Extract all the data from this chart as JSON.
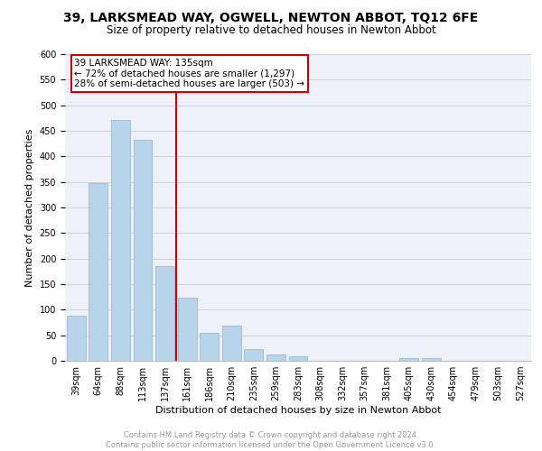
{
  "title": "39, LARKSMEAD WAY, OGWELL, NEWTON ABBOT, TQ12 6FE",
  "subtitle": "Size of property relative to detached houses in Newton Abbot",
  "xlabel": "Distribution of detached houses by size in Newton Abbot",
  "ylabel": "Number of detached properties",
  "categories": [
    "39sqm",
    "64sqm",
    "88sqm",
    "113sqm",
    "137sqm",
    "161sqm",
    "186sqm",
    "210sqm",
    "235sqm",
    "259sqm",
    "283sqm",
    "308sqm",
    "332sqm",
    "357sqm",
    "381sqm",
    "405sqm",
    "430sqm",
    "454sqm",
    "479sqm",
    "503sqm",
    "527sqm"
  ],
  "values": [
    88,
    348,
    472,
    432,
    185,
    123,
    55,
    68,
    23,
    13,
    8,
    0,
    0,
    0,
    0,
    5,
    5,
    0,
    0,
    0,
    0
  ],
  "bar_color": "#b8d4ea",
  "bar_edge_color": "#8ab4d4",
  "vline_color": "#cc0000",
  "annotation_line1": "39 LARKSMEAD WAY: 135sqm",
  "annotation_line2": "← 72% of detached houses are smaller (1,297)",
  "annotation_line3": "28% of semi-detached houses are larger (503) →",
  "annotation_box_edge_color": "#cc0000",
  "footer_line1": "Contains HM Land Registry data © Crown copyright and database right 2024.",
  "footer_line2": "Contains public sector information licensed under the Open Government Licence v3.0.",
  "ylim": [
    0,
    600
  ],
  "yticks": [
    0,
    50,
    100,
    150,
    200,
    250,
    300,
    350,
    400,
    450,
    500,
    550,
    600
  ],
  "grid_color": "#c8d4e4",
  "background_color": "#eef2f8",
  "title_fontsize": 10,
  "subtitle_fontsize": 8.5,
  "ylabel_fontsize": 8,
  "xlabel_fontsize": 8,
  "tick_fontsize": 7,
  "annotation_fontsize": 7.5,
  "footer_fontsize": 6
}
